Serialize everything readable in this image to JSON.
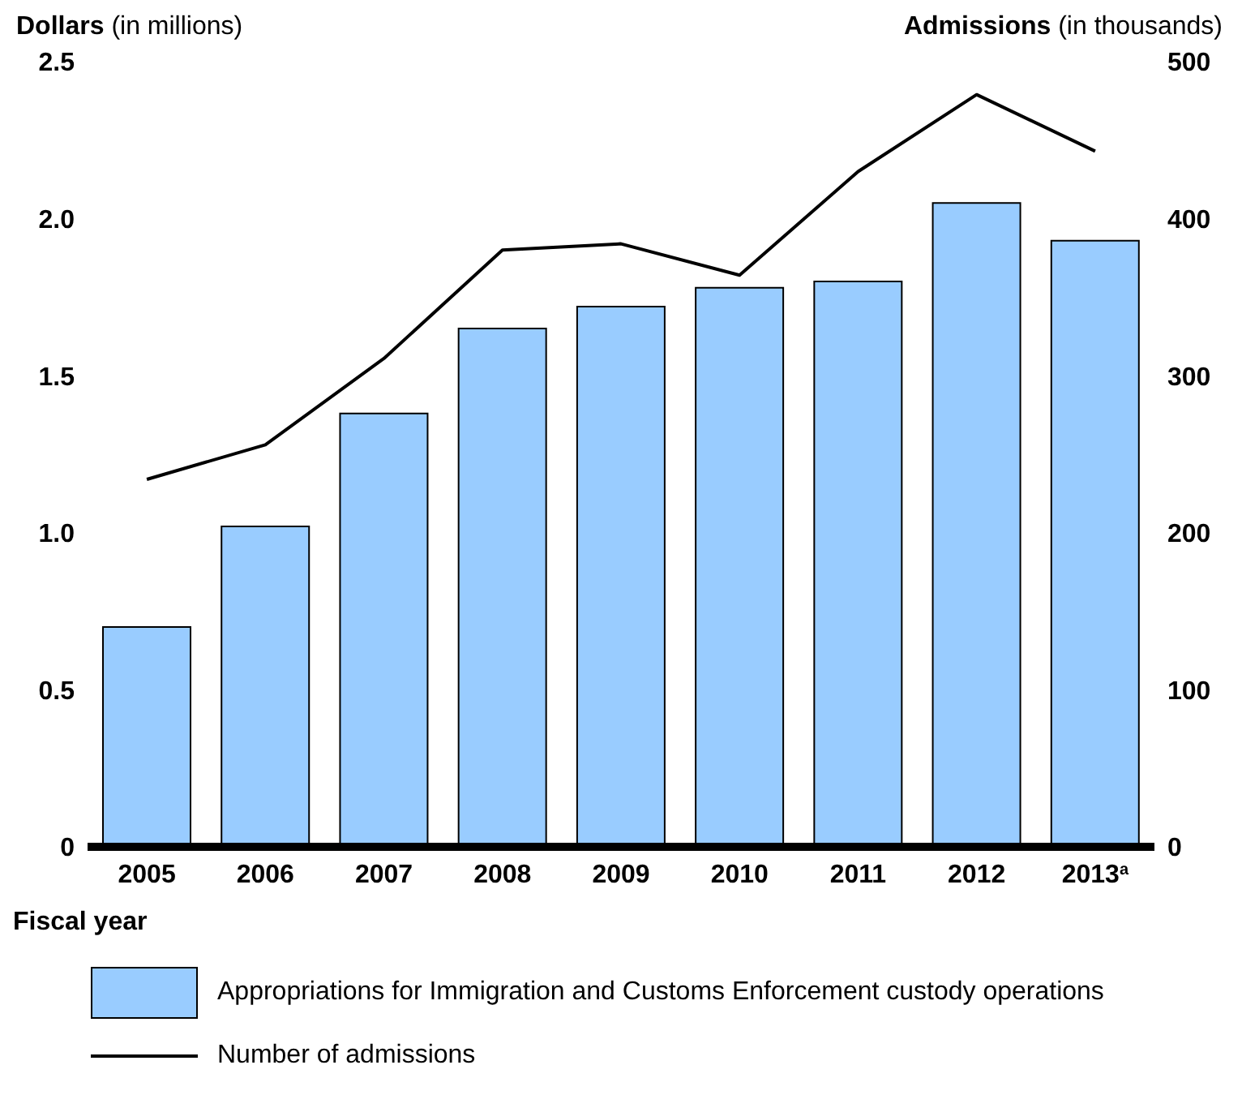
{
  "chart_data": {
    "type": "bar",
    "ylabel": "Dollars (in millions)",
    "y2label": "Admissions (in thousands)",
    "xlabel": "Fiscal year",
    "categories": [
      "2005",
      "2006",
      "2007",
      "2008",
      "2009",
      "2010",
      "2011",
      "2012",
      "2013$^{a}$"
    ],
    "series": [
      {
        "name": "Appropriations for Immigration and Customs Enforcement custody operations",
        "color": "#99ccff",
        "values": [
          0.7,
          1.02,
          1.38,
          1.65,
          1.72,
          1.78,
          1.8,
          2.05,
          1.93
        ]
      },
      {
        "name": "Number of admissions",
        "type": "line",
        "axis": "y2",
        "color": "#000000",
        "values": [
          234,
          256,
          311,
          380,
          384,
          364,
          430,
          479,
          443
        ]
      }
    ],
    "ylim": [
      0,
      2.5
    ],
    "yticks": [
      {
        "value": 0,
        "label": "0"
      },
      0.5,
      {
        "value": 1,
        "label": "1.0"
      },
      1.5,
      {
        "value": 2,
        "label": "2.0"
      },
      2.5
    ],
    "y2lim": [
      0,
      500
    ],
    "y2ticks": [
      0,
      100,
      200,
      300,
      400,
      500
    ],
    "grid": false,
    "legend": "bottom",
    "marker": "none",
    "line_style": "solid"
  }
}
